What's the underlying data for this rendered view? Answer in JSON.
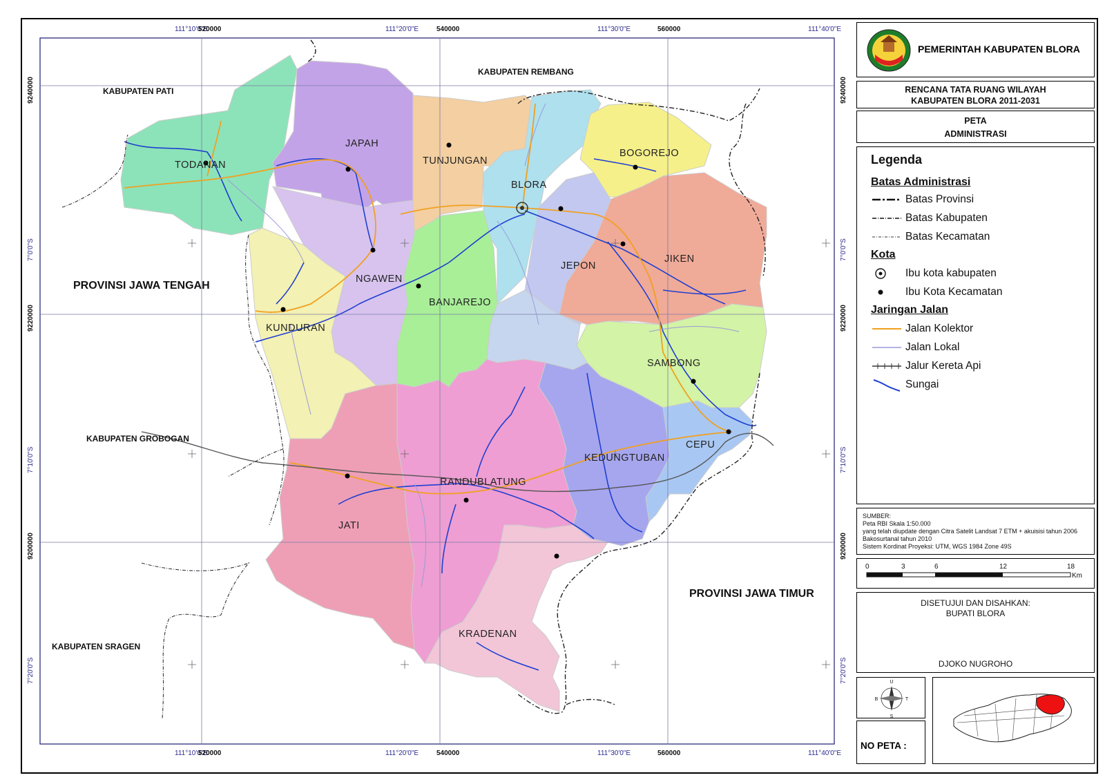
{
  "header": {
    "agency": "PEMERINTAH KABUPATEN BLORA",
    "plan_line1": "RENCANA TATA RUANG WILAYAH",
    "plan_line2": "KABUPATEN BLORA 2011-2031",
    "map_type_line1": "PETA",
    "map_type_line2": "ADMINISTRASI"
  },
  "legend": {
    "title": "Legenda",
    "sections": [
      {
        "heading": "Batas Administrasi",
        "items": [
          {
            "label": "Batas Provinsi",
            "icon": "province-boundary-line"
          },
          {
            "label": "Batas Kabupaten",
            "icon": "regency-boundary-line"
          },
          {
            "label": "Batas Kecamatan",
            "icon": "district-boundary-line"
          }
        ]
      },
      {
        "heading": "Kota",
        "items": [
          {
            "label": "Ibu kota kabupaten",
            "icon": "capital-circle-icon"
          },
          {
            "label": "Ibu Kota Kecamatan",
            "icon": "district-dot-icon"
          }
        ]
      },
      {
        "heading": "Jaringan Jalan",
        "items": [
          {
            "label": "Jalan Kolektor",
            "icon": "collector-road-line"
          },
          {
            "label": "Jalan Lokal",
            "icon": "local-road-line"
          },
          {
            "label": "Jalur Kereta Api",
            "icon": "railway-line"
          },
          {
            "label": "Sungai",
            "icon": "river-line"
          }
        ]
      }
    ]
  },
  "source": {
    "lines": [
      "SUMBER:",
      "Peta RBI Skala 1:50.000",
      "yang telah diupdate dengan Citra Satelit Landsat 7 ETM + akuisisi tahun 2006",
      "Bakosurtanal tahun 2010",
      "Sistem Kordinat Proyeksi: UTM, WGS 1984 Zone 49S"
    ]
  },
  "scale_bar": {
    "ticks": [
      "0",
      "3",
      "6",
      "12",
      "18"
    ],
    "unit": "Km"
  },
  "approval": {
    "line1": "DISETUJUI DAN DISAHKAN:",
    "line2": "BUPATI BLORA",
    "name": "DJOKO NUGROHO"
  },
  "compass": {
    "north": "U",
    "south": "S",
    "west": "B",
    "east": "T"
  },
  "map_number_label": "NO PETA :",
  "grid_labels": {
    "top": [
      "111°10'0\"E",
      "520000",
      "111°20'0\"E",
      "540000",
      "111°30'0\"E",
      "560000",
      "111°40'0\"E"
    ],
    "left": [
      "9240000",
      "7°0'0\"S",
      "9220000",
      "7°10'0\"S",
      "9200000",
      "7°20'0\"S"
    ]
  },
  "regions": {
    "neighbors": [
      "KABUPATEN PATI",
      "KABUPATEN REMBANG",
      "PROVINSI JAWA TENGAH",
      "KABUPATEN GROBOGAN",
      "KABUPATEN SRAGEN",
      "PROVINSI JAWA TIMUR"
    ],
    "districts": [
      "TODANAN",
      "JAPAH",
      "TUNJUNGAN",
      "BLORA",
      "BOGOREJO",
      "NGAWEN",
      "BANJAREJO",
      "JEPON",
      "JIKEN",
      "KUNDURAN",
      "SAMBONG",
      "CEPU",
      "KEDUNGTUBAN",
      "RANDUBLATUNG",
      "JATI",
      "KRADENAN"
    ]
  },
  "colors": {
    "collector_road": "#f0a020",
    "local_road": "#9a9ad8",
    "river": "#1f3fd0",
    "grid": "#2a2aa0",
    "highlight": "#ee1111"
  }
}
